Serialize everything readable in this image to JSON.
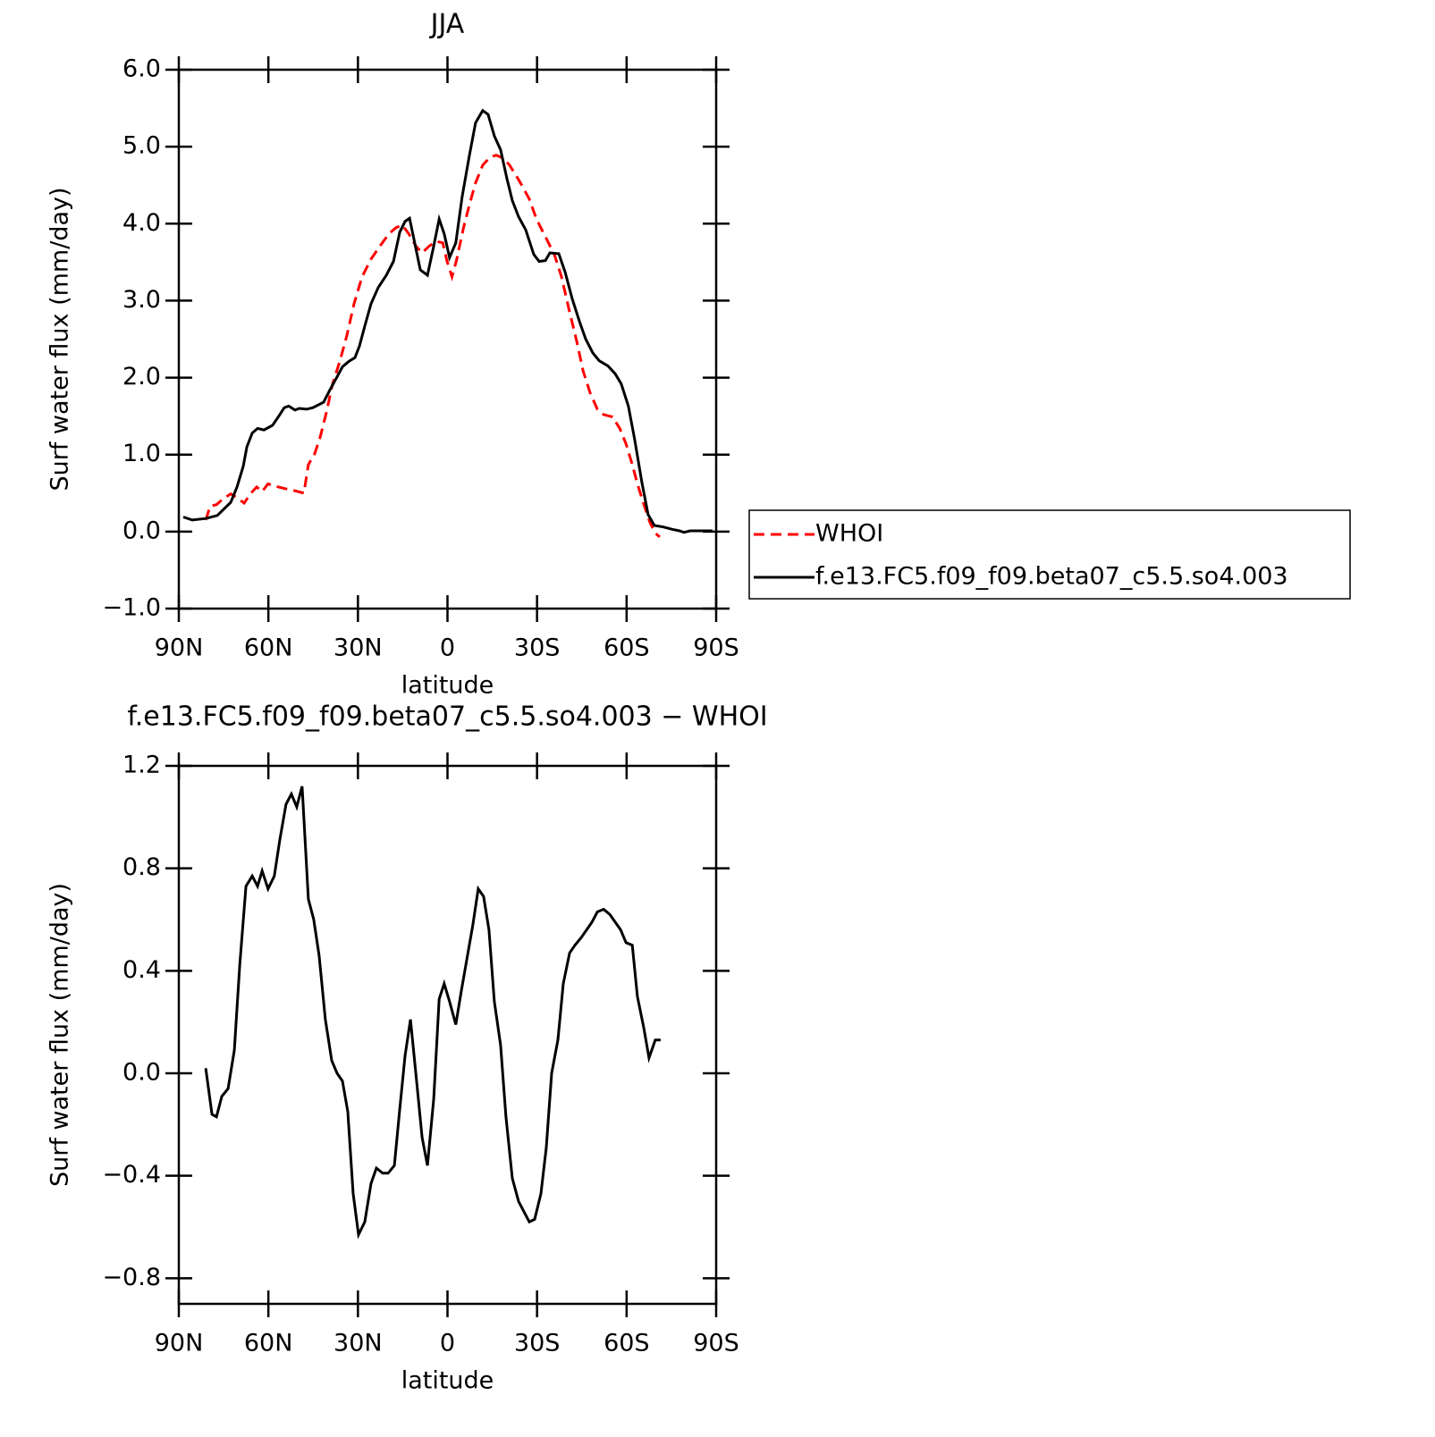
{
  "chart_data": [
    {
      "type": "line",
      "title": "JJA",
      "xlabel": "latitude",
      "ylabel": "Surf water flux (mm/day)",
      "xlim": [
        90,
        -90
      ],
      "xticks": [
        {
          "value": 90,
          "label": "90N"
        },
        {
          "value": 60,
          "label": "60N"
        },
        {
          "value": 30,
          "label": "30N"
        },
        0,
        {
          "value": -30,
          "label": "30S"
        },
        {
          "value": -60,
          "label": "60S"
        },
        {
          "value": -90,
          "label": "90S"
        }
      ],
      "ylim": [
        -1,
        6
      ],
      "yticks": [
        {
          "value": -1,
          "label": "−1.0"
        },
        {
          "value": 0,
          "label": "0.0"
        },
        {
          "value": 1,
          "label": "1.0"
        },
        {
          "value": 2,
          "label": "2.0"
        },
        {
          "value": 3,
          "label": "3.0"
        },
        {
          "value": 4,
          "label": "4.0"
        },
        {
          "value": 5,
          "label": "5.0"
        },
        {
          "value": 6,
          "label": "6.0"
        }
      ],
      "legend": "right",
      "series": [
        {
          "name": "WHOI",
          "color": "#ff0000",
          "dashed": true,
          "x": [
            81.0,
            79.5,
            77.4,
            75.0,
            72.6,
            70.5,
            68.1,
            66.0,
            63.9,
            62.1,
            60.1,
            57.7,
            54.7,
            51.1,
            48.1,
            46.6,
            44.5,
            42.7,
            40.6,
            38.5,
            36.1,
            33.7,
            31.3,
            28.6,
            25.6,
            22.6,
            19.6,
            17.2,
            15.1,
            13.0,
            10.6,
            8.5,
            6.1,
            3.7,
            1.6,
            0.2,
            -1.5,
            -3.0,
            -5.4,
            -7.3,
            -9.4,
            -11.8,
            -14.2,
            -16.3,
            -18.7,
            -20.8,
            -23.2,
            -25.3,
            -27.4,
            -29.8,
            -32.8,
            -35.8,
            -38.2,
            -40.6,
            -43.3,
            -45.4,
            -47.8,
            -50.2,
            -52.3,
            -55.3,
            -57.7,
            -59.8,
            -61.9,
            -63.6,
            -65.8,
            -67.8,
            -69.6,
            -71.1
          ],
          "values": [
            0.15,
            0.33,
            0.35,
            0.43,
            0.49,
            0.44,
            0.37,
            0.49,
            0.58,
            0.52,
            0.62,
            0.59,
            0.56,
            0.53,
            0.5,
            0.87,
            1.01,
            1.22,
            1.54,
            1.92,
            2.21,
            2.55,
            2.96,
            3.31,
            3.54,
            3.71,
            3.87,
            3.95,
            3.98,
            3.87,
            3.71,
            3.62,
            3.71,
            3.77,
            3.75,
            3.52,
            3.31,
            3.52,
            3.95,
            4.24,
            4.53,
            4.76,
            4.86,
            4.89,
            4.85,
            4.76,
            4.61,
            4.47,
            4.32,
            4.06,
            3.83,
            3.6,
            3.31,
            2.9,
            2.47,
            2.09,
            1.8,
            1.59,
            1.52,
            1.49,
            1.34,
            1.14,
            0.87,
            0.62,
            0.35,
            0.12,
            -0.02,
            -0.07
          ]
        },
        {
          "name": "f.e13.FC5.f09_f09.beta07_c5.5.so4.003",
          "color": "#000000",
          "dashed": false,
          "x": [
            88.5,
            85.5,
            81.0,
            77.1,
            75.0,
            72.6,
            70.5,
            68.4,
            67.2,
            65.4,
            63.6,
            61.5,
            58.6,
            56.5,
            54.7,
            53.2,
            51.1,
            49.6,
            47.2,
            45.1,
            41.5,
            39.1,
            37.0,
            35.2,
            33.1,
            31.0,
            29.5,
            27.7,
            25.6,
            23.2,
            20.5,
            18.1,
            16.0,
            14.2,
            12.7,
            10.6,
            9.1,
            6.7,
            4.6,
            2.8,
            1.1,
            -0.7,
            -2.8,
            -4.9,
            -7.3,
            -9.4,
            -11.8,
            -13.6,
            -15.7,
            -17.8,
            -19.9,
            -21.7,
            -23.8,
            -26.2,
            -28.9,
            -30.7,
            -32.8,
            -34.3,
            -37.3,
            -39.4,
            -41.8,
            -44.2,
            -46.3,
            -48.7,
            -50.8,
            -53.8,
            -56.2,
            -58.2,
            -60.6,
            -62.7,
            -65.1,
            -67.2,
            -69.3,
            -72.3,
            -75.3,
            -77.7,
            -79.2,
            -81.3,
            -85.2,
            -88.8
          ],
          "values": [
            0.19,
            0.15,
            0.17,
            0.21,
            0.29,
            0.38,
            0.58,
            0.85,
            1.1,
            1.28,
            1.34,
            1.32,
            1.38,
            1.5,
            1.61,
            1.63,
            1.58,
            1.6,
            1.59,
            1.61,
            1.68,
            1.86,
            2.01,
            2.14,
            2.21,
            2.26,
            2.41,
            2.67,
            2.96,
            3.17,
            3.33,
            3.51,
            3.89,
            4.03,
            4.07,
            3.68,
            3.4,
            3.33,
            3.71,
            4.06,
            3.87,
            3.56,
            3.75,
            4.35,
            4.88,
            5.31,
            5.47,
            5.42,
            5.14,
            4.96,
            4.59,
            4.3,
            4.09,
            3.92,
            3.6,
            3.51,
            3.52,
            3.62,
            3.61,
            3.37,
            3.02,
            2.73,
            2.5,
            2.32,
            2.22,
            2.15,
            2.05,
            1.92,
            1.63,
            1.2,
            0.64,
            0.22,
            0.08,
            0.06,
            0.03,
            0.01,
            -0.01,
            0.01,
            0.01,
            0.01
          ]
        }
      ]
    },
    {
      "type": "line",
      "title": "f.e13.FC5.f09_f09.beta07_c5.5.so4.003 − WHOI",
      "xlabel": "latitude",
      "ylabel": "Surf water flux (mm/day)",
      "xlim": [
        90,
        -90
      ],
      "xticks": [
        {
          "value": 90,
          "label": "90N"
        },
        {
          "value": 60,
          "label": "60N"
        },
        {
          "value": 30,
          "label": "30N"
        },
        0,
        {
          "value": -30,
          "label": "30S"
        },
        {
          "value": -60,
          "label": "60S"
        },
        {
          "value": -90,
          "label": "90S"
        }
      ],
      "ylim": [
        -0.9,
        1.2
      ],
      "yticks": [
        {
          "value": -0.8,
          "label": "−0.8"
        },
        {
          "value": -0.4,
          "label": "−0.4"
        },
        {
          "value": 0,
          "label": "0.0"
        },
        0.4,
        0.8,
        1.2
      ],
      "color": "#000000",
      "x": [
        81.0,
        78.9,
        77.4,
        75.6,
        73.5,
        71.4,
        69.6,
        67.5,
        65.4,
        63.6,
        62.1,
        60.1,
        58.0,
        56.2,
        54.1,
        52.3,
        50.5,
        48.7,
        46.6,
        44.8,
        43.0,
        40.9,
        38.8,
        37.0,
        35.2,
        33.4,
        31.6,
        29.8,
        27.7,
        25.6,
        23.8,
        21.7,
        19.9,
        17.8,
        16.0,
        14.2,
        12.4,
        10.6,
        8.5,
        6.7,
        4.6,
        2.8,
        1.1,
        -0.7,
        -2.8,
        -4.6,
        -6.4,
        -8.5,
        -10.3,
        -12.1,
        -13.9,
        -15.7,
        -17.8,
        -19.6,
        -21.7,
        -23.8,
        -25.6,
        -27.4,
        -29.2,
        -31.3,
        -33.1,
        -34.9,
        -37.0,
        -38.8,
        -40.9,
        -42.7,
        -44.8,
        -46.6,
        -48.4,
        -50.2,
        -52.3,
        -54.4,
        -56.2,
        -58.0,
        -59.8,
        -61.9,
        -63.6,
        -65.7,
        -67.5,
        -69.6,
        -71.4
      ],
      "values": [
        0.02,
        -0.16,
        -0.17,
        -0.09,
        -0.06,
        0.09,
        0.42,
        0.73,
        0.77,
        0.73,
        0.79,
        0.72,
        0.77,
        0.91,
        1.05,
        1.09,
        1.04,
        1.12,
        0.68,
        0.6,
        0.46,
        0.21,
        0.05,
        0.0,
        -0.03,
        -0.15,
        -0.47,
        -0.63,
        -0.58,
        -0.43,
        -0.37,
        -0.39,
        -0.39,
        -0.36,
        -0.14,
        0.07,
        0.21,
        0.0,
        -0.25,
        -0.36,
        -0.1,
        0.29,
        0.35,
        0.28,
        0.19,
        0.32,
        0.44,
        0.58,
        0.72,
        0.69,
        0.56,
        0.28,
        0.11,
        -0.17,
        -0.41,
        -0.5,
        -0.54,
        -0.58,
        -0.57,
        -0.47,
        -0.29,
        0.0,
        0.13,
        0.35,
        0.47,
        0.5,
        0.53,
        0.56,
        0.59,
        0.63,
        0.64,
        0.62,
        0.59,
        0.56,
        0.51,
        0.5,
        0.3,
        0.18,
        0.06,
        0.13,
        0.13
      ]
    }
  ]
}
